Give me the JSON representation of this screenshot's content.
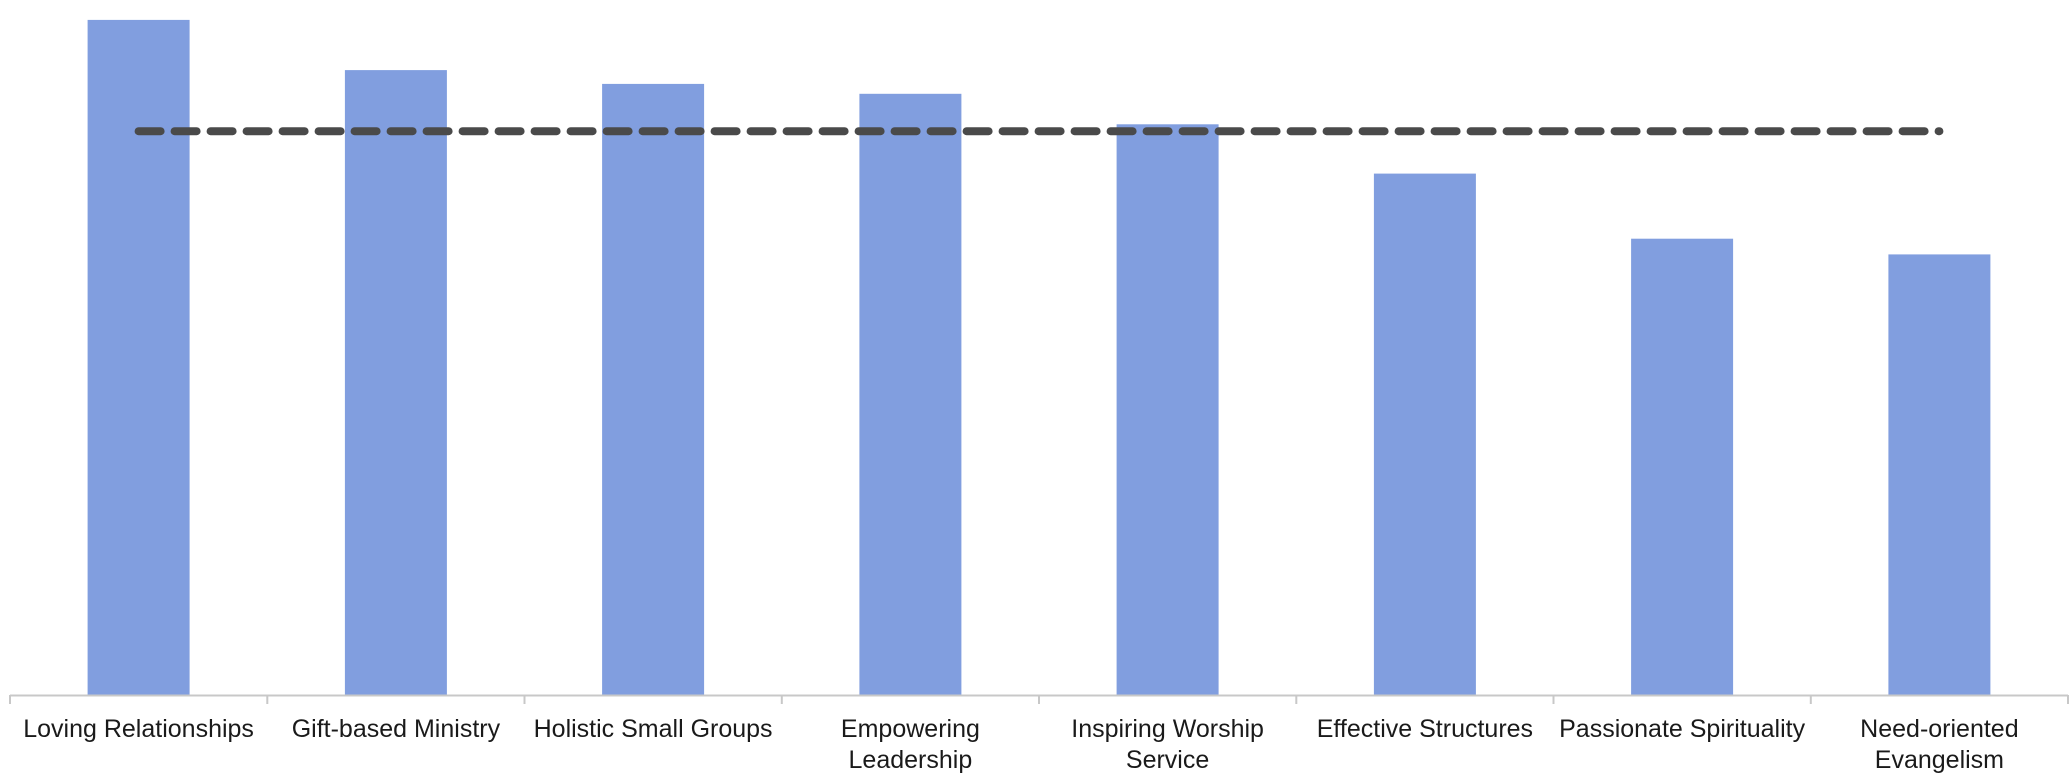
{
  "chart_data": {
    "type": "bar",
    "categories": [
      [
        "Loving Relationships"
      ],
      [
        "Gift-based Ministry"
      ],
      [
        "Holistic Small Groups"
      ],
      [
        "Empowering",
        "Leadership"
      ],
      [
        "Inspiring Worship",
        "Service"
      ],
      [
        "Effective Structures"
      ],
      [
        "Passionate Spirituality"
      ],
      [
        "Need-oriented",
        "Evangelism"
      ]
    ],
    "values": [
      68.5,
      63.4,
      62.0,
      61.0,
      57.9,
      52.9,
      46.3,
      44.7
    ],
    "reference_line": {
      "value": 57.2,
      "style": "dashed",
      "color": "#4a4a4a"
    },
    "ylim": [
      0,
      69.5
    ],
    "title": "",
    "xlabel": "",
    "ylabel": "",
    "grid": false,
    "legend": "none",
    "colors": {
      "bar": "#819edf",
      "axis": "#c8c8c8",
      "text": "#1a1a1a"
    }
  }
}
